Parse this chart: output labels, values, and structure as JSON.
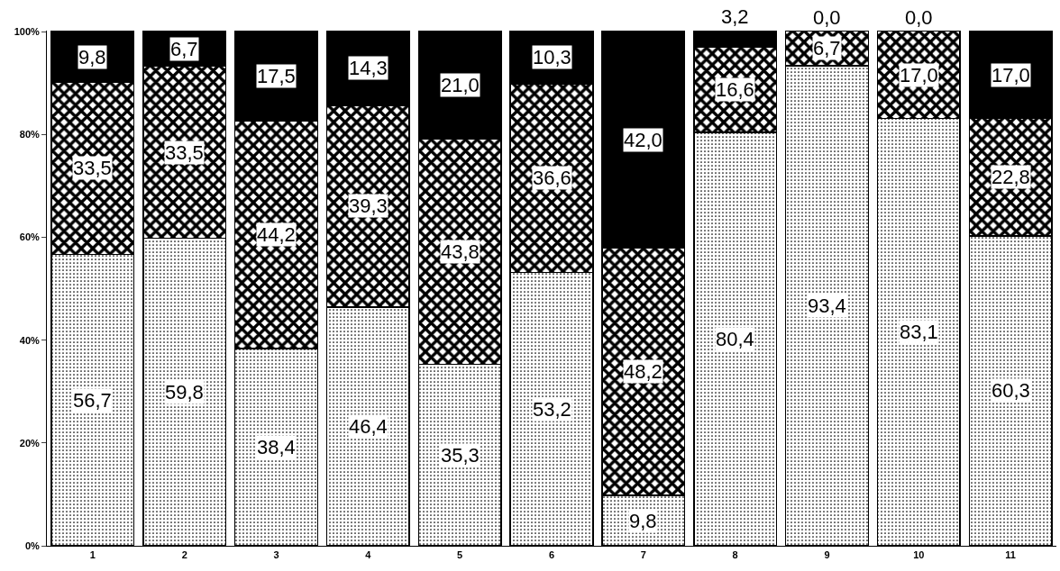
{
  "chart_data": {
    "type": "bar",
    "stacked": true,
    "categories": [
      "1",
      "2",
      "3",
      "4",
      "5",
      "6",
      "7",
      "8",
      "9",
      "10",
      "11"
    ],
    "series": [
      {
        "color": "#000000",
        "values": [
          56.7,
          59.8,
          38.4,
          46.4,
          35.3,
          53.2,
          9.8,
          80.4,
          93.4,
          83.1,
          60.3
        ],
        "value_labels": [
          "56,7",
          "59,8",
          "38,4",
          "46,4",
          "35,3",
          "53,2",
          "9,8",
          "80,4",
          "93,4",
          "83,1",
          "60,3"
        ]
      },
      {
        "color": "#000000",
        "values": [
          33.5,
          33.5,
          44.2,
          39.3,
          43.8,
          36.6,
          48.2,
          16.6,
          6.7,
          17.0,
          22.8
        ],
        "value_labels": [
          "33,5",
          "33,5",
          "44,2",
          "39,3",
          "43,8",
          "36,6",
          "48,2",
          "16,6",
          "6,7",
          "17,0",
          "22,8"
        ]
      },
      {
        "color": "#000000",
        "values": [
          9.8,
          6.7,
          17.5,
          14.3,
          21.0,
          10.3,
          42.0,
          3.2,
          0.0,
          0.0,
          17.0
        ],
        "value_labels": [
          "9,8",
          "6,7",
          "17,5",
          "14,3",
          "21,0",
          "10,3",
          "42,0",
          "3,2",
          "0,0",
          "0,0",
          "17,0"
        ]
      }
    ],
    "ylim": [
      0,
      100.2
    ],
    "yticks": [
      {
        "value": 0,
        "label": "0%"
      },
      {
        "value": 20,
        "label": "20%"
      },
      {
        "value": 40,
        "label": "40%"
      },
      {
        "value": 60,
        "label": "60%"
      },
      {
        "value": 80,
        "label": "80%"
      },
      {
        "value": 100,
        "label": "100%"
      }
    ],
    "grid": false
  }
}
